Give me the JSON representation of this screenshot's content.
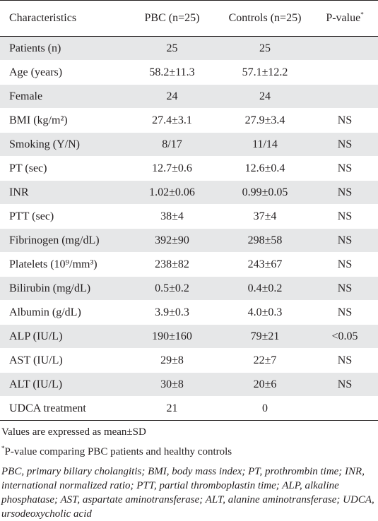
{
  "table": {
    "headers": [
      "Characteristics",
      "PBC (n=25)",
      "Controls (n=25)",
      "P-value"
    ],
    "header_pvalue_marker": "*",
    "rows": [
      [
        "Patients (n)",
        "25",
        "25",
        ""
      ],
      [
        "Age (years)",
        "58.2±11.3",
        "57.1±12.2",
        ""
      ],
      [
        "Female",
        "24",
        "24",
        ""
      ],
      [
        "BMI (kg/m²)",
        "27.4±3.1",
        "27.9±3.4",
        "NS"
      ],
      [
        "Smoking (Y/N)",
        "8/17",
        "11/14",
        "NS"
      ],
      [
        "PT (sec)",
        "12.7±0.6",
        "12.6±0.4",
        "NS"
      ],
      [
        "INR",
        "1.02±0.06",
        "0.99±0.05",
        "NS"
      ],
      [
        "PTT (sec)",
        "38±4",
        "37±4",
        "NS"
      ],
      [
        "Fibrinogen (mg/dL)",
        "392±90",
        "298±58",
        "NS"
      ],
      [
        "Platelets (10⁹/mm³)",
        "238±82",
        "243±67",
        "NS"
      ],
      [
        "Bilirubin (mg/dL)",
        "0.5±0.2",
        "0.4±0.2",
        "NS"
      ],
      [
        "Albumin (g/dL)",
        "3.9±0.3",
        "4.0±0.3",
        "NS"
      ],
      [
        "ALP (IU/L)",
        "190±160",
        "79±21",
        "<0.05"
      ],
      [
        "AST (IU/L)",
        "29±8",
        "22±7",
        "NS"
      ],
      [
        "ALT (IU/L)",
        "30±8",
        "20±6",
        "NS"
      ],
      [
        "UDCA treatment",
        "21",
        "0",
        ""
      ]
    ]
  },
  "notes": {
    "values": "Values are expressed as mean±SD",
    "pvalue_marker": "*",
    "pvalue": "P-value comparing PBC patients and healthy controls",
    "abbreviations": "PBC, primary biliary cholangitis; BMI, body mass index; PT, prothrombin time; INR, international normalized ratio; PTT, partial thromboplastin time; ALP, alkaline phosphatase; AST, aspartate aminotransferase; ALT, alanine aminotransferase; UDCA, ursodeoxycholic acid"
  }
}
